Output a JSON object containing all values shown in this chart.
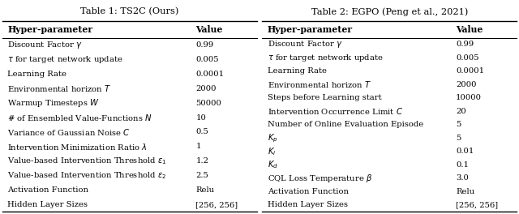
{
  "table1_title": "Table 1: TS2C (Ours)",
  "table2_title": "Table 2: EGPO (Peng et al., 2021)",
  "col_headers": [
    "Hyper-parameter",
    "Value"
  ],
  "table1_rows": [
    [
      "Discount Factor $\\gamma$",
      "0.99"
    ],
    [
      "$\\tau$ for target network update",
      "0.005"
    ],
    [
      "Learning Rate",
      "0.0001"
    ],
    [
      "Environmental horizon $T$",
      "2000"
    ],
    [
      "Warmup Timesteps $W$",
      "50000"
    ],
    [
      "# of Ensembled Value-Functions $N$",
      "10"
    ],
    [
      "Variance of Gaussian Noise $C$",
      "0.5"
    ],
    [
      "Intervention Minimization Ratio $\\lambda$",
      "1"
    ],
    [
      "Value-based Intervention Threshold $\\varepsilon_1$",
      "1.2"
    ],
    [
      "Value-based Intervention Threshold $\\varepsilon_2$",
      "2.5"
    ],
    [
      "Activation Function",
      "Relu"
    ],
    [
      "Hidden Layer Sizes",
      "[256, 256]"
    ]
  ],
  "table2_rows": [
    [
      "Discount Factor $\\gamma$",
      "0.99"
    ],
    [
      "$\\tau$ for target network update",
      "0.005"
    ],
    [
      "Learning Rate",
      "0.0001"
    ],
    [
      "Environmental horizon $T$",
      "2000"
    ],
    [
      "Steps before Learning start",
      "10000"
    ],
    [
      "Intervention Occurrence Limit $C$",
      "20"
    ],
    [
      "Number of Online Evaluation Episode",
      "5"
    ],
    [
      "$K_p$",
      "5"
    ],
    [
      "$K_i$",
      "0.01"
    ],
    [
      "$K_d$",
      "0.1"
    ],
    [
      "CQL Loss Temperature $\\beta$",
      "3.0"
    ],
    [
      "Activation Function",
      "Relu"
    ],
    [
      "Hidden Layer Sizes",
      "[256, 256]"
    ]
  ],
  "bg_color": "#ffffff",
  "text_color": "#000000",
  "line_color": "#000000",
  "fontsize": 7.2,
  "title_fontsize": 8.2,
  "header_fontsize": 7.8
}
